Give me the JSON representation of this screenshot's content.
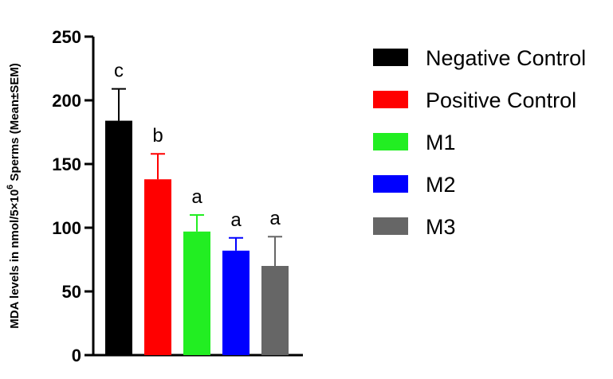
{
  "chart_data": {
    "type": "bar",
    "title": "",
    "xlabel": "",
    "ylabel": {
      "prefix": "MDA levels in nmol/5×10",
      "superscript": "6",
      "suffix": " Sperms (Mean±SEM)"
    },
    "ylim": [
      0,
      250
    ],
    "yticks": [
      0,
      50,
      100,
      150,
      200,
      250
    ],
    "grid": false,
    "legend_position": "right",
    "categories": [
      "Negative Control",
      "Positive Control",
      "M1",
      "M2",
      "M3"
    ],
    "values": [
      184,
      138,
      97,
      82,
      70
    ],
    "errors": [
      25,
      20,
      13,
      10,
      23
    ],
    "significance": [
      "c",
      "b",
      "a",
      "a",
      "a"
    ],
    "colors": [
      "#000000",
      "#ff0000",
      "#22ee22",
      "#0000ff",
      "#666666"
    ]
  }
}
